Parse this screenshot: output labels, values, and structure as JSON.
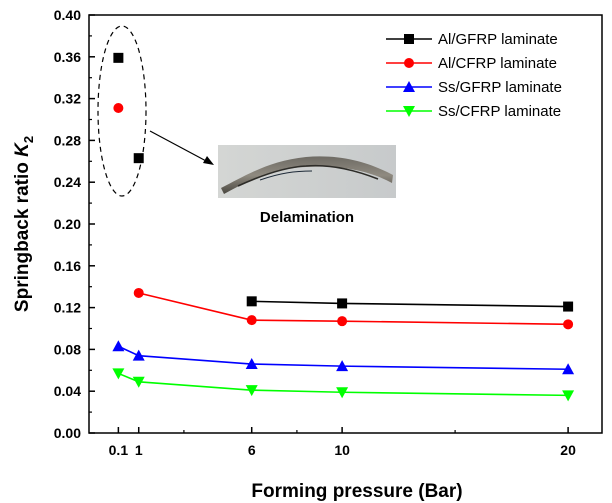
{
  "chart_data": {
    "type": "line",
    "title": "",
    "xlabel": "Forming pressure (Bar)",
    "ylabel_main": "Springback ratio ",
    "ylabel_var": "K",
    "ylabel_sub": "2",
    "xlim": [
      -1.2,
      21.5
    ],
    "ylim": [
      0.0,
      0.4
    ],
    "x_ticks": [
      0.1,
      1,
      6,
      10,
      20
    ],
    "x_tick_labels": [
      "0.1",
      "1",
      "6",
      "10",
      "20"
    ],
    "y_ticks": [
      0.0,
      0.04,
      0.08,
      0.12,
      0.16,
      0.2,
      0.24,
      0.28,
      0.32,
      0.36,
      0.4
    ],
    "y_tick_labels": [
      "0.00",
      "0.04",
      "0.08",
      "0.12",
      "0.16",
      "0.20",
      "0.24",
      "0.28",
      "0.32",
      "0.36",
      "0.40"
    ],
    "grid": false,
    "legend_position": "top-right",
    "series": [
      {
        "name": "Al/GFRP laminate",
        "color": "#000000",
        "marker": "square",
        "x": [
          6,
          10,
          20
        ],
        "y": [
          0.126,
          0.124,
          0.121
        ]
      },
      {
        "name": "Al/CFRP laminate",
        "color": "#ff0000",
        "marker": "circle",
        "x": [
          1,
          6,
          10,
          20
        ],
        "y": [
          0.134,
          0.108,
          0.107,
          0.104
        ]
      },
      {
        "name": "Ss/GFRP laminate",
        "color": "#0000ff",
        "marker": "triangle-up",
        "x": [
          0.1,
          1,
          6,
          10,
          20
        ],
        "y": [
          0.083,
          0.074,
          0.066,
          0.064,
          0.061
        ]
      },
      {
        "name": "Ss/CFRP laminate",
        "color": "#00ff00",
        "marker": "triangle-down",
        "x": [
          0.1,
          1,
          6,
          10,
          20
        ],
        "y": [
          0.057,
          0.049,
          0.041,
          0.039,
          0.036
        ]
      }
    ],
    "outlier_points": [
      {
        "series": "Al/GFRP laminate",
        "color": "#000000",
        "marker": "square",
        "x": 0.1,
        "y": 0.359
      },
      {
        "series": "Al/CFRP laminate",
        "color": "#ff0000",
        "marker": "circle",
        "x": 0.1,
        "y": 0.311
      },
      {
        "series": "Al/GFRP laminate",
        "color": "#000000",
        "marker": "square",
        "x": 1,
        "y": 0.263
      }
    ],
    "annotation": {
      "label": "Delamination",
      "image": "photo of delaminated laminate specimen (bent strip)",
      "callout": "dashed ellipse around low-pressure points with arrow to photo"
    }
  }
}
